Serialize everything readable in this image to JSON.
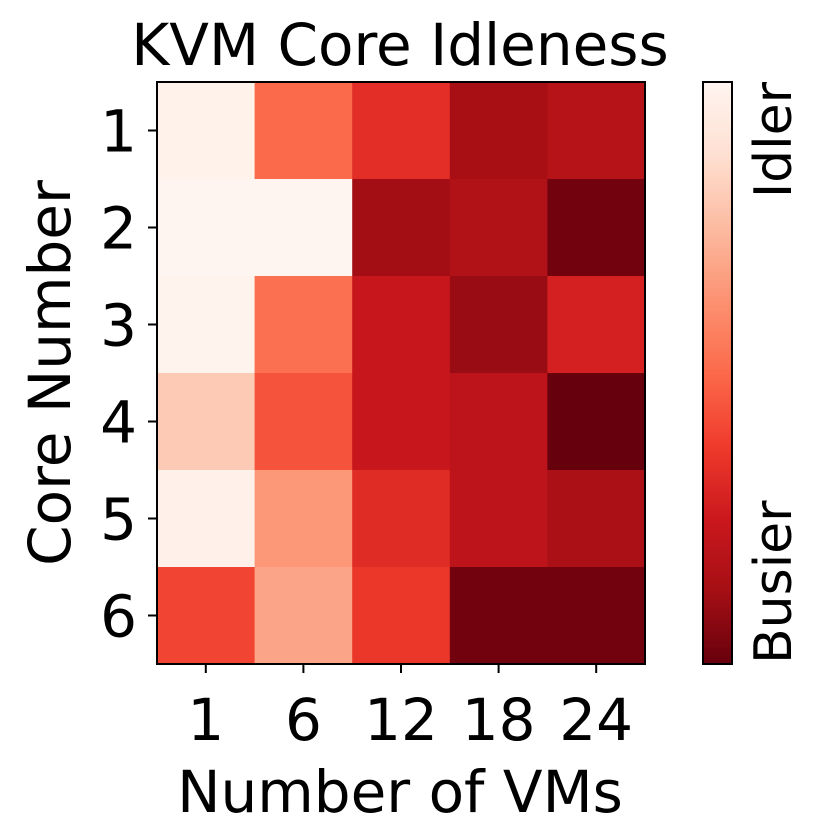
{
  "chart_data": {
    "type": "heatmap",
    "title": "KVM Core Idleness",
    "xlabel": "Number of VMs",
    "ylabel": "Core Number",
    "x_categories": [
      "1",
      "6",
      "12",
      "18",
      "24"
    ],
    "y_categories": [
      "1",
      "2",
      "3",
      "4",
      "5",
      "6"
    ],
    "value_range": [
      0,
      1
    ],
    "values": [
      [
        0.98,
        0.5,
        0.33,
        0.13,
        0.18
      ],
      [
        1.0,
        1.0,
        0.12,
        0.16,
        0.02
      ],
      [
        0.99,
        0.52,
        0.24,
        0.1,
        0.28
      ],
      [
        0.8,
        0.44,
        0.24,
        0.2,
        0.0
      ],
      [
        0.97,
        0.64,
        0.32,
        0.2,
        0.14
      ],
      [
        0.4,
        0.68,
        0.36,
        0.02,
        0.02
      ]
    ],
    "colorbar": {
      "top_label": "Idler",
      "bottom_label": "Busier"
    }
  },
  "colors": {
    "palette": [
      "#67000d",
      "#a50f15",
      "#cb181d",
      "#ef3b2c",
      "#fb6a4a",
      "#fc9272",
      "#fcbba1",
      "#fee0d2",
      "#fff5f0"
    ],
    "axis": "#000000",
    "background": "#ffffff"
  }
}
